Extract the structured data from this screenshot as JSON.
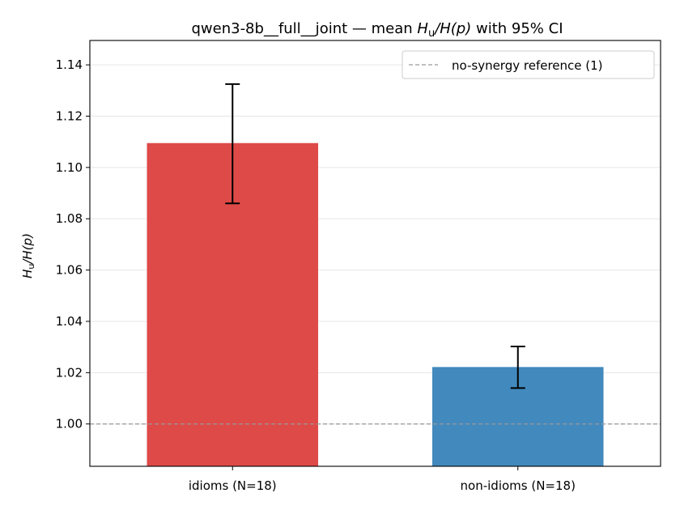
{
  "chart_data": {
    "type": "bar",
    "title_prefix": "qwen3-8b__full__joint — mean ",
    "title_math_h": "H",
    "title_math_sub": "u",
    "title_math_rest": "/H(p)",
    "title_suffix": " with 95% CI",
    "ylabel_h": "H",
    "ylabel_sub": "u",
    "ylabel_rest": "/H(p)",
    "xlabel": "",
    "categories": [
      "idioms (N=18)",
      "non-idioms (N=18)"
    ],
    "values": [
      1.1095,
      1.0222
    ],
    "ci_low": [
      1.086,
      1.014
    ],
    "ci_high": [
      1.1325,
      1.0302
    ],
    "bar_colors": [
      "#de4a48",
      "#4289bd"
    ],
    "ylim": [
      0.9835,
      1.1495
    ],
    "yticks": [
      1.0,
      1.02,
      1.04,
      1.06,
      1.08,
      1.1,
      1.12,
      1.14
    ],
    "ytick_labels": [
      "1.00",
      "1.02",
      "1.04",
      "1.06",
      "1.08",
      "1.10",
      "1.12",
      "1.14"
    ],
    "reference_line": {
      "value": 1.0,
      "color": "#999999",
      "label": "no-synergy reference (1)"
    },
    "grid": "y",
    "legend_position": "top-right"
  }
}
